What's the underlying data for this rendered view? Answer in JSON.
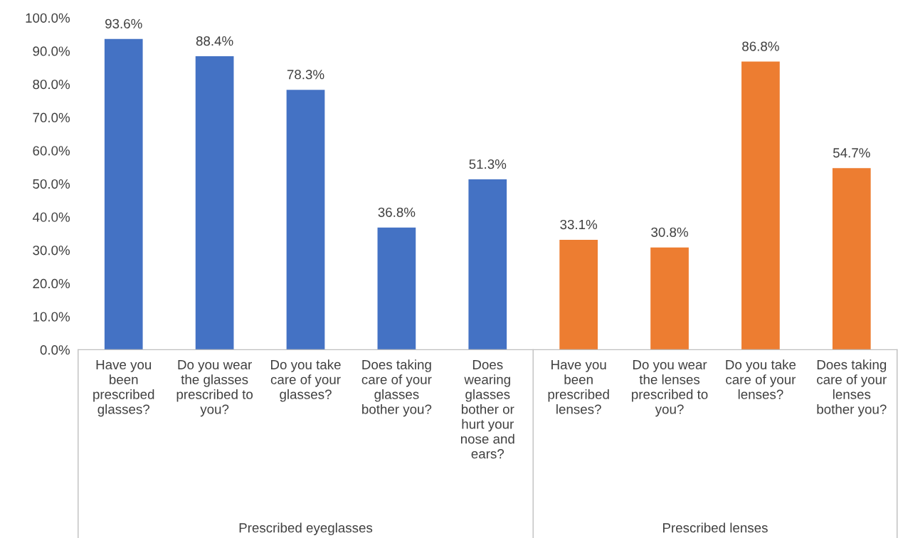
{
  "chart_data": {
    "type": "bar",
    "categories": [
      "Have you\nbeen\nprescribed\nglasses?",
      "Do you wear\nthe glasses\nprescribed to\nyou?",
      "Do you take\ncare of your\nglasses?",
      "Does taking\ncare of your\nglasses\nbother you?",
      "Does\nwearing\nglasses\nbother or\nhurt your\nnose and\nears?",
      "Have you\nbeen\nprescribed\nlenses?",
      "Do you wear\nthe lenses\nprescribed to\nyou?",
      "Do you take\ncare of your\nlenses?",
      "Does taking\ncare of your\nlenses\nbother you?"
    ],
    "values": [
      93.6,
      88.4,
      78.3,
      36.8,
      51.3,
      33.1,
      30.8,
      86.8,
      54.7
    ],
    "colors": [
      "#4472c4",
      "#4472c4",
      "#4472c4",
      "#4472c4",
      "#4472c4",
      "#ed7d31",
      "#ed7d31",
      "#ed7d31",
      "#ed7d31"
    ],
    "value_labels": [
      "93.6%",
      "88.4%",
      "78.3%",
      "36.8%",
      "51.3%",
      "33.1%",
      "30.8%",
      "86.8%",
      "54.7%"
    ],
    "annotations": [
      "Prescribed eyeglasses",
      "Prescribed lenses"
    ],
    "ylim": [
      0,
      100
    ],
    "yticks": [
      {
        "value": 0,
        "label": "0.0%"
      },
      {
        "value": 10,
        "label": "10.0%"
      },
      {
        "value": 20,
        "label": "20.0%"
      },
      {
        "value": 30,
        "label": "30.0%"
      },
      {
        "value": 40,
        "label": "40.0%"
      },
      {
        "value": 50,
        "label": "50.0%"
      },
      {
        "value": 60,
        "label": "60.0%"
      },
      {
        "value": 70,
        "label": "70.0%"
      },
      {
        "value": 80,
        "label": "80.0%"
      },
      {
        "value": 90,
        "label": "90.0%"
      },
      {
        "value": 100,
        "label": "100.0%"
      }
    ],
    "grid": false
  }
}
